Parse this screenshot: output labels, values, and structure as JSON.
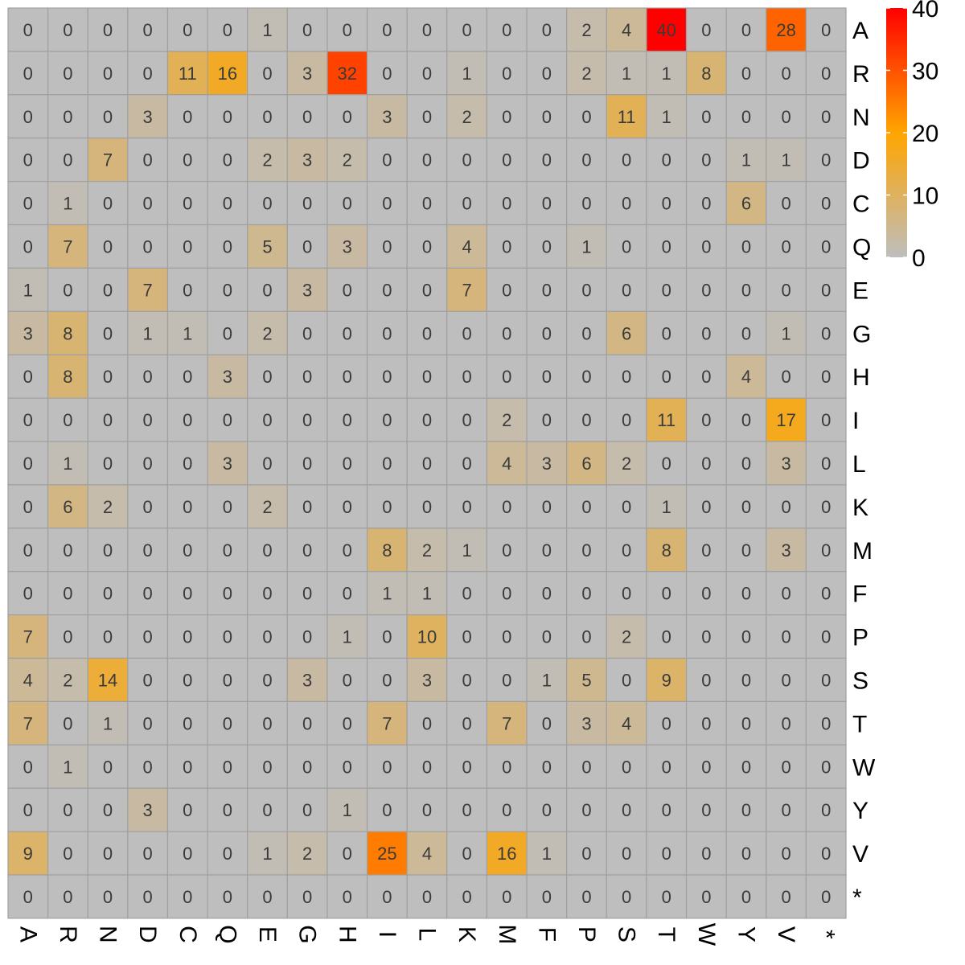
{
  "chart_data": {
    "type": "heatmap",
    "title": "",
    "xlabel": "",
    "ylabel": "",
    "columns": [
      "A",
      "R",
      "N",
      "D",
      "C",
      "Q",
      "E",
      "G",
      "H",
      "I",
      "L",
      "K",
      "M",
      "F",
      "P",
      "S",
      "T",
      "W",
      "Y",
      "V",
      "*"
    ],
    "rows": [
      "A",
      "R",
      "N",
      "D",
      "C",
      "Q",
      "E",
      "G",
      "H",
      "I",
      "L",
      "K",
      "M",
      "F",
      "P",
      "S",
      "T",
      "W",
      "Y",
      "V",
      "*"
    ],
    "values": [
      [
        0,
        0,
        0,
        0,
        0,
        0,
        1,
        0,
        0,
        0,
        0,
        0,
        0,
        0,
        2,
        4,
        40,
        0,
        0,
        28,
        0
      ],
      [
        0,
        0,
        0,
        0,
        11,
        16,
        0,
        3,
        32,
        0,
        0,
        1,
        0,
        0,
        2,
        1,
        1,
        8,
        0,
        0,
        0
      ],
      [
        0,
        0,
        0,
        3,
        0,
        0,
        0,
        0,
        0,
        3,
        0,
        2,
        0,
        0,
        0,
        11,
        1,
        0,
        0,
        0,
        0
      ],
      [
        0,
        0,
        7,
        0,
        0,
        0,
        2,
        3,
        2,
        0,
        0,
        0,
        0,
        0,
        0,
        0,
        0,
        0,
        1,
        1,
        0
      ],
      [
        0,
        1,
        0,
        0,
        0,
        0,
        0,
        0,
        0,
        0,
        0,
        0,
        0,
        0,
        0,
        0,
        0,
        0,
        6,
        0,
        0
      ],
      [
        0,
        7,
        0,
        0,
        0,
        0,
        5,
        0,
        3,
        0,
        0,
        4,
        0,
        0,
        1,
        0,
        0,
        0,
        0,
        0,
        0
      ],
      [
        1,
        0,
        0,
        7,
        0,
        0,
        0,
        3,
        0,
        0,
        0,
        7,
        0,
        0,
        0,
        0,
        0,
        0,
        0,
        0,
        0
      ],
      [
        3,
        8,
        0,
        1,
        1,
        0,
        2,
        0,
        0,
        0,
        0,
        0,
        0,
        0,
        0,
        6,
        0,
        0,
        0,
        1,
        0
      ],
      [
        0,
        8,
        0,
        0,
        0,
        3,
        0,
        0,
        0,
        0,
        0,
        0,
        0,
        0,
        0,
        0,
        0,
        0,
        4,
        0,
        0
      ],
      [
        0,
        0,
        0,
        0,
        0,
        0,
        0,
        0,
        0,
        0,
        0,
        0,
        2,
        0,
        0,
        0,
        11,
        0,
        0,
        17,
        0
      ],
      [
        0,
        1,
        0,
        0,
        0,
        3,
        0,
        0,
        0,
        0,
        0,
        0,
        4,
        3,
        6,
        2,
        0,
        0,
        0,
        3,
        0
      ],
      [
        0,
        6,
        2,
        0,
        0,
        0,
        2,
        0,
        0,
        0,
        0,
        0,
        0,
        0,
        0,
        0,
        1,
        0,
        0,
        0,
        0
      ],
      [
        0,
        0,
        0,
        0,
        0,
        0,
        0,
        0,
        0,
        8,
        2,
        1,
        0,
        0,
        0,
        0,
        8,
        0,
        0,
        3,
        0
      ],
      [
        0,
        0,
        0,
        0,
        0,
        0,
        0,
        0,
        0,
        1,
        1,
        0,
        0,
        0,
        0,
        0,
        0,
        0,
        0,
        0,
        0
      ],
      [
        7,
        0,
        0,
        0,
        0,
        0,
        0,
        0,
        1,
        0,
        10,
        0,
        0,
        0,
        0,
        2,
        0,
        0,
        0,
        0,
        0
      ],
      [
        4,
        2,
        14,
        0,
        0,
        0,
        0,
        3,
        0,
        0,
        3,
        0,
        0,
        1,
        5,
        0,
        9,
        0,
        0,
        0,
        0
      ],
      [
        7,
        0,
        1,
        0,
        0,
        0,
        0,
        0,
        0,
        7,
        0,
        0,
        7,
        0,
        3,
        4,
        0,
        0,
        0,
        0,
        0
      ],
      [
        0,
        1,
        0,
        0,
        0,
        0,
        0,
        0,
        0,
        0,
        0,
        0,
        0,
        0,
        0,
        0,
        0,
        0,
        0,
        0,
        0
      ],
      [
        0,
        0,
        0,
        3,
        0,
        0,
        0,
        0,
        1,
        0,
        0,
        0,
        0,
        0,
        0,
        0,
        0,
        0,
        0,
        0,
        0
      ],
      [
        9,
        0,
        0,
        0,
        0,
        0,
        1,
        2,
        0,
        25,
        4,
        0,
        16,
        1,
        0,
        0,
        0,
        0,
        0,
        0,
        0
      ],
      [
        0,
        0,
        0,
        0,
        0,
        0,
        0,
        0,
        0,
        0,
        0,
        0,
        0,
        0,
        0,
        0,
        0,
        0,
        0,
        0,
        0
      ]
    ],
    "color_range": [
      0,
      40
    ],
    "color_stops": [
      {
        "value": 0,
        "color": "#bebebe"
      },
      {
        "value": 20,
        "color": "#ffa500"
      },
      {
        "value": 40,
        "color": "#ff0000"
      }
    ],
    "legend": {
      "ticks": [
        0,
        10,
        20,
        30,
        40
      ],
      "tick_labels": [
        "0",
        "10",
        "20",
        "30",
        "40"
      ],
      "position": "top-right"
    },
    "grid_color": "#a0a0a0"
  }
}
